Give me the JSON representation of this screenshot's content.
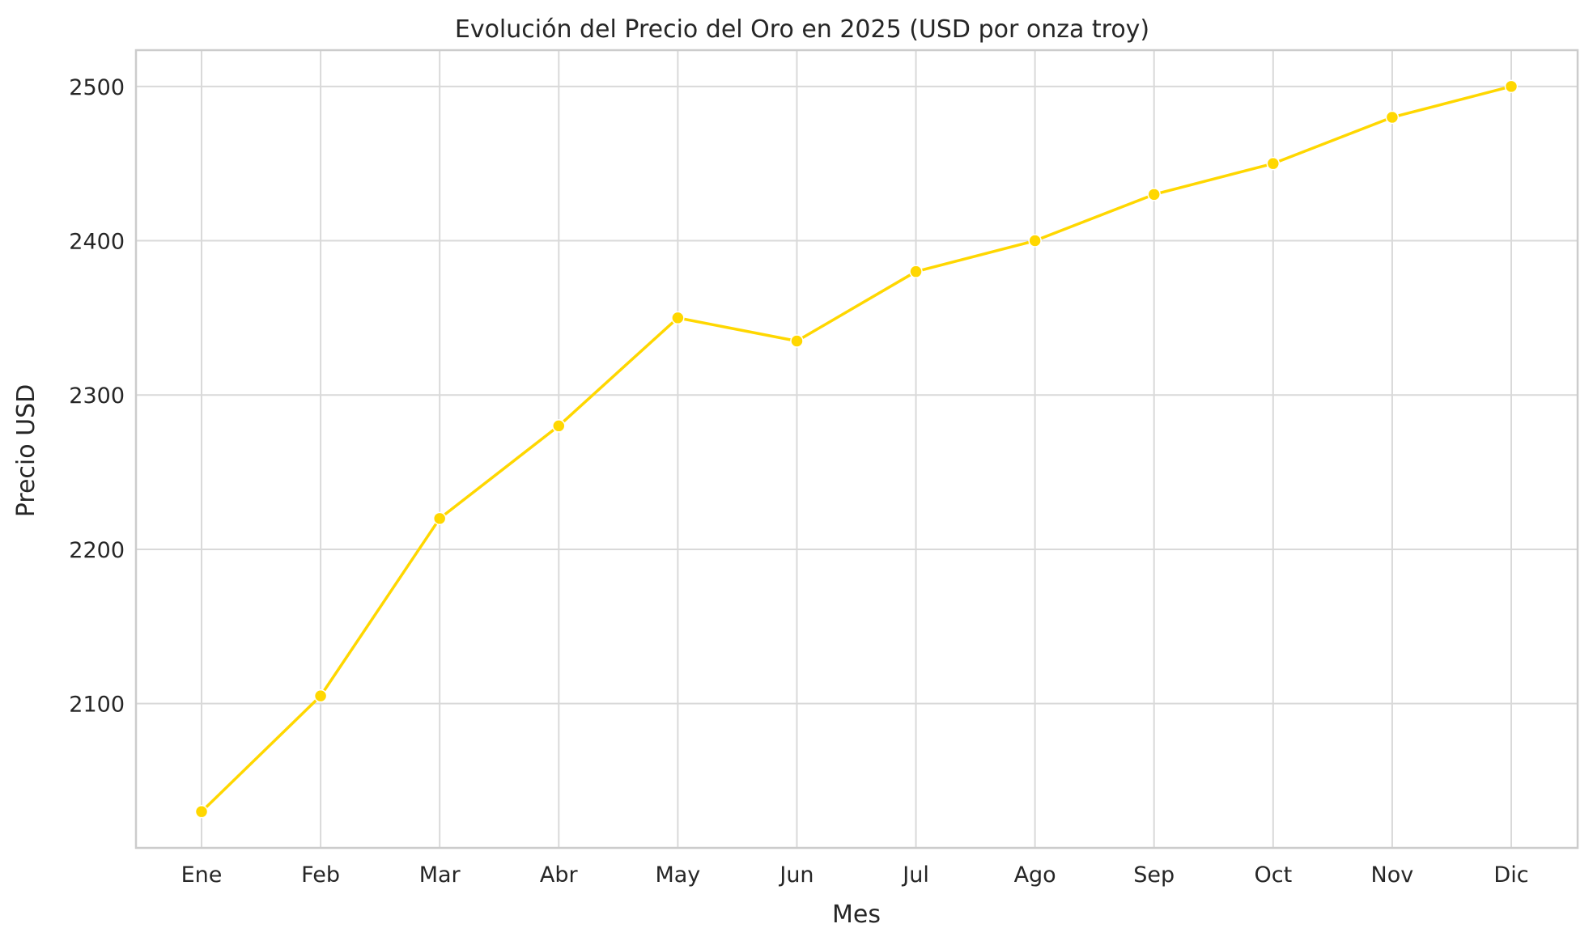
{
  "chart_data": {
    "type": "line",
    "title": "Evolución del Precio del Oro en 2025 (USD por onza troy)",
    "xlabel": "Mes",
    "ylabel": "Precio USD",
    "categories": [
      "Ene",
      "Feb",
      "Mar",
      "Abr",
      "May",
      "Jun",
      "Jul",
      "Ago",
      "Sep",
      "Oct",
      "Nov",
      "Dic"
    ],
    "series": [
      {
        "values": [
          2030,
          2105,
          2220,
          2280,
          2350,
          2335,
          2380,
          2400,
          2430,
          2450,
          2480,
          2500
        ]
      }
    ],
    "yticks": [
      2100,
      2200,
      2300,
      2400,
      2500
    ],
    "ylim": [
      2006.5,
      2523.5
    ],
    "grid": true,
    "legend": "none",
    "colors": {
      "line": "#FFD700",
      "grid": "#d9d9d9",
      "spine": "#cccccc",
      "text": "#262626"
    }
  }
}
